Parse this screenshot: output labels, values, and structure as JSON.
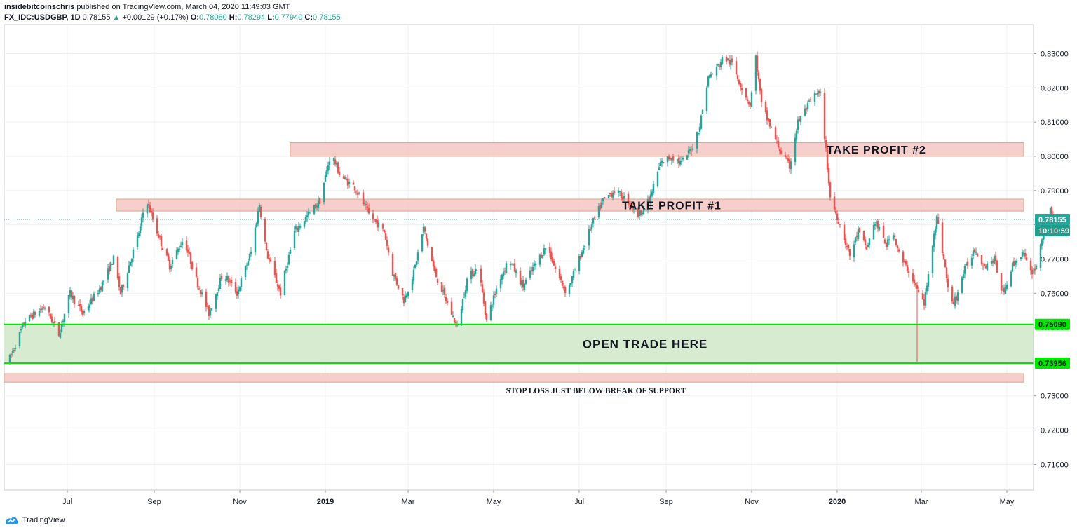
{
  "header": {
    "author": "insidebitcoinschris",
    "published_text": "published on TradingView.com, March 04, 2020 11:49:03 GMT",
    "symbol": "FX_IDC:USDGBP, 1D",
    "last": "0.78155",
    "change_arrow": "▲",
    "change": "+0.00129 (+0.17%)",
    "open_label": "O:",
    "open": "0.78080",
    "high_label": "H:",
    "high": "0.78294",
    "low_label": "L:",
    "low": "0.77940",
    "close_label": "C:",
    "close": "0.78155"
  },
  "footer": {
    "brand": "TradingView",
    "logo_icon": "tradingview-logo-icon"
  },
  "colors": {
    "up": "#26a69a",
    "down": "#ef5350",
    "resistance_fill": "#f4c7c3",
    "resistance_border": "#d9a78a",
    "support_fill": "#d6ebcf",
    "support_line": "#00e600",
    "price_line": "#26a69a",
    "time_badge": "#1e9e8c"
  },
  "chart_data": {
    "type": "candlestick",
    "symbol": "FX_IDC:USDGBP",
    "interval": "1D",
    "ylim": [
      0.7025,
      0.8385
    ],
    "y_ticks": [
      "0.83000",
      "0.82000",
      "0.81000",
      "0.80000",
      "0.79000",
      "0.78000",
      "0.77000",
      "0.76000",
      "0.75000",
      "0.74000",
      "0.73000",
      "0.72000",
      "0.71000"
    ],
    "x_ticks": [
      "Jul",
      "Sep",
      "Nov",
      "2019",
      "Mar",
      "May",
      "Jul",
      "Sep",
      "Nov",
      "2020",
      "Mar",
      "May"
    ],
    "x_tick_bold": [
      false,
      false,
      false,
      true,
      false,
      false,
      false,
      false,
      false,
      true,
      false,
      false
    ],
    "x_tick_dates": [
      "2018-07-01",
      "2018-09-01",
      "2018-11-01",
      "2019-01-01",
      "2019-03-01",
      "2019-05-01",
      "2019-07-01",
      "2019-09-01",
      "2019-11-01",
      "2020-01-01",
      "2020-03-01",
      "2020-05-01"
    ],
    "date_range": [
      "2018-05-17",
      "2020-05-20"
    ],
    "close_path": [
      [
        "2018-05-20",
        0.74
      ],
      [
        "2018-06-01",
        0.752
      ],
      [
        "2018-06-15",
        0.756
      ],
      [
        "2018-06-25",
        0.748
      ],
      [
        "2018-07-03",
        0.76
      ],
      [
        "2018-07-12",
        0.754
      ],
      [
        "2018-07-25",
        0.762
      ],
      [
        "2018-08-03",
        0.77
      ],
      [
        "2018-08-08",
        0.76
      ],
      [
        "2018-08-22",
        0.779
      ],
      [
        "2018-08-26",
        0.788
      ],
      [
        "2018-09-02",
        0.779
      ],
      [
        "2018-09-12",
        0.768
      ],
      [
        "2018-09-22",
        0.776
      ],
      [
        "2018-10-01",
        0.764
      ],
      [
        "2018-10-10",
        0.754
      ],
      [
        "2018-10-20",
        0.766
      ],
      [
        "2018-10-30",
        0.76
      ],
      [
        "2018-11-09",
        0.772
      ],
      [
        "2018-11-15",
        0.786
      ],
      [
        "2018-11-20",
        0.772
      ],
      [
        "2018-11-30",
        0.76
      ],
      [
        "2018-12-10",
        0.778
      ],
      [
        "2018-12-20",
        0.783
      ],
      [
        "2018-12-28",
        0.787
      ],
      [
        "2019-01-05",
        0.801
      ],
      [
        "2019-01-12",
        0.794
      ],
      [
        "2019-01-22",
        0.791
      ],
      [
        "2019-02-01",
        0.783
      ],
      [
        "2019-02-12",
        0.778
      ],
      [
        "2019-02-18",
        0.766
      ],
      [
        "2019-02-26",
        0.758
      ],
      [
        "2019-03-05",
        0.766
      ],
      [
        "2019-03-12",
        0.779
      ],
      [
        "2019-03-20",
        0.766
      ],
      [
        "2019-03-26",
        0.76
      ],
      [
        "2019-04-05",
        0.75
      ],
      [
        "2019-04-12",
        0.764
      ],
      [
        "2019-04-20",
        0.768
      ],
      [
        "2019-04-26",
        0.752
      ],
      [
        "2019-05-05",
        0.764
      ],
      [
        "2019-05-12",
        0.77
      ],
      [
        "2019-05-22",
        0.762
      ],
      [
        "2019-05-30",
        0.768
      ],
      [
        "2019-06-08",
        0.774
      ],
      [
        "2019-06-15",
        0.766
      ],
      [
        "2019-06-22",
        0.76
      ],
      [
        "2019-07-01",
        0.77
      ],
      [
        "2019-07-10",
        0.78
      ],
      [
        "2019-07-18",
        0.787
      ],
      [
        "2019-07-26",
        0.79
      ],
      [
        "2019-08-05",
        0.787
      ],
      [
        "2019-08-12",
        0.783
      ],
      [
        "2019-08-20",
        0.787
      ],
      [
        "2019-08-28",
        0.798
      ],
      [
        "2019-09-05",
        0.8
      ],
      [
        "2019-09-12",
        0.798
      ],
      [
        "2019-09-20",
        0.803
      ],
      [
        "2019-09-25",
        0.809
      ],
      [
        "2019-10-01",
        0.823
      ],
      [
        "2019-10-06",
        0.825
      ],
      [
        "2019-10-12",
        0.829
      ],
      [
        "2019-10-18",
        0.827
      ],
      [
        "2019-10-25",
        0.82
      ],
      [
        "2019-10-31",
        0.815
      ],
      [
        "2019-11-04",
        0.829
      ],
      [
        "2019-11-08",
        0.815
      ],
      [
        "2019-11-14",
        0.809
      ],
      [
        "2019-11-22",
        0.801
      ],
      [
        "2019-11-28",
        0.797
      ],
      [
        "2019-12-04",
        0.81
      ],
      [
        "2019-12-10",
        0.814
      ],
      [
        "2019-12-16",
        0.818
      ],
      [
        "2019-12-20",
        0.818
      ],
      [
        "2019-12-23",
        0.806
      ],
      [
        "2019-12-27",
        0.788
      ],
      [
        "2020-01-03",
        0.78
      ],
      [
        "2020-01-10",
        0.771
      ],
      [
        "2020-01-16",
        0.778
      ],
      [
        "2020-01-22",
        0.773
      ],
      [
        "2020-01-28",
        0.781
      ],
      [
        "2020-02-05",
        0.774
      ],
      [
        "2020-02-10",
        0.778
      ],
      [
        "2020-02-15",
        0.77
      ],
      [
        "2020-02-22",
        0.766
      ],
      [
        "2020-02-28",
        0.76
      ],
      [
        "2020-03-03",
        0.757
      ],
      [
        "2020-03-06",
        0.765
      ],
      [
        "2020-03-10",
        0.778
      ],
      [
        "2020-03-12",
        0.782
      ],
      [
        "2020-03-17",
        0.77
      ],
      [
        "2020-03-22",
        0.756
      ],
      [
        "2020-03-26",
        0.759
      ],
      [
        "2020-03-31",
        0.766
      ],
      [
        "2020-04-08",
        0.773
      ],
      [
        "2020-04-15",
        0.768
      ],
      [
        "2020-04-22",
        0.77
      ],
      [
        "2020-04-28",
        0.76
      ],
      [
        "2020-05-05",
        0.768
      ],
      [
        "2020-05-12",
        0.772
      ],
      [
        "2020-05-18",
        0.766
      ],
      [
        "2020-05-22",
        0.768
      ],
      [
        "2020-05-26",
        0.776
      ],
      [
        "2020-06-01",
        0.784
      ],
      [
        "2020-06-04",
        0.7815
      ]
    ],
    "last_price": 0.78155,
    "last_price_label": "0.78155",
    "countdown_label": "10:10:59",
    "zones": [
      {
        "name": "take-profit-2",
        "y0": 0.8,
        "y1": 0.804,
        "x_start": "2018-12-07",
        "label": "TAKE PROFIT #2"
      },
      {
        "name": "take-profit-1",
        "y0": 0.784,
        "y1": 0.7875,
        "x_start": "2018-08-05",
        "label": "TAKE PROFIT #1"
      },
      {
        "name": "stop-loss",
        "y0": 0.734,
        "y1": 0.7365,
        "x_start": "2018-05-17",
        "label": "STOP LOSS JUST BELOW BREAK OF SUPPORT"
      }
    ],
    "support": {
      "y0": 0.73956,
      "y1": 0.7509,
      "label": "OPEN TRADE HERE",
      "y0_label": "0.73956",
      "y1_label": "0.75090"
    }
  }
}
